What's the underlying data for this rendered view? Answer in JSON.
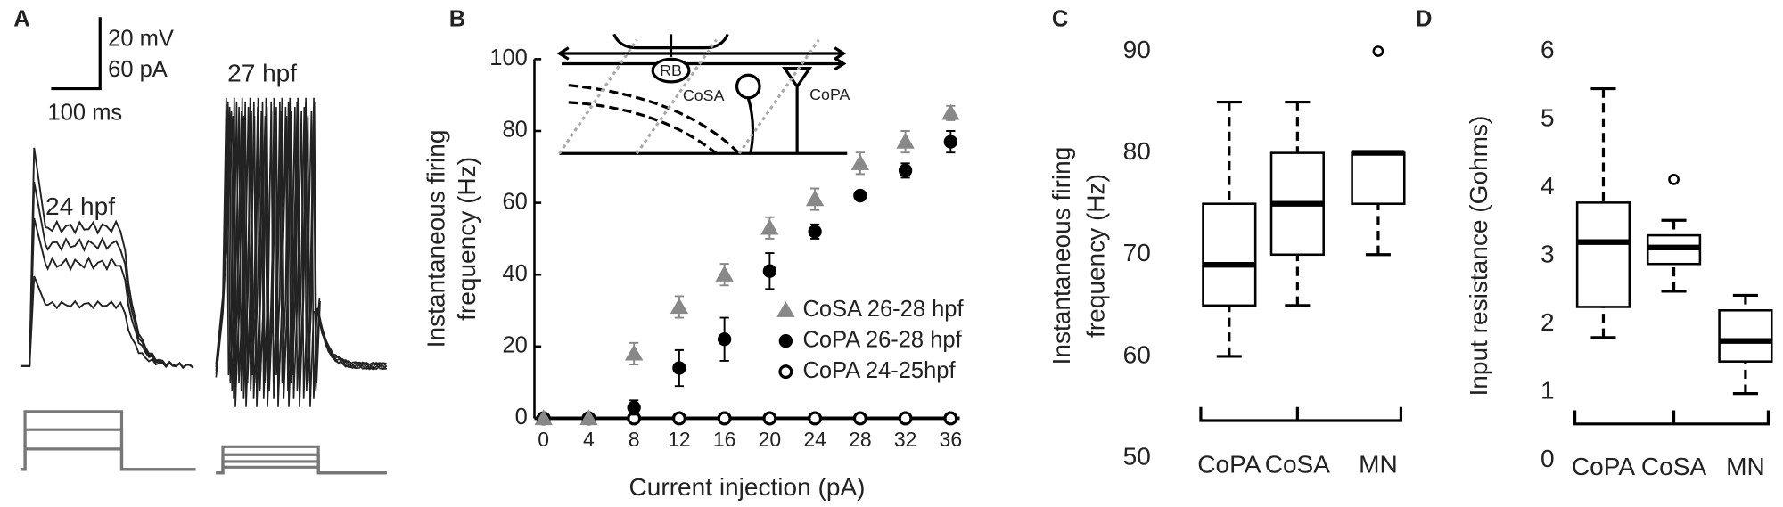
{
  "panel_a": {
    "label": "A",
    "scale_bar": [
      "20 mV",
      "60 pA",
      "100 ms"
    ],
    "traces": [
      "24 hpf",
      "27 hpf"
    ]
  },
  "chart_data": [
    {
      "type": "scatter",
      "panel": "B",
      "x_label": "Current injection (pA)",
      "y_label": [
        "Instantaneous firing",
        "frequency (Hz)"
      ],
      "x": [
        0,
        4,
        8,
        12,
        16,
        20,
        24,
        28,
        32,
        36
      ],
      "xlim": [
        0,
        36
      ],
      "xticks": [
        0,
        4,
        8,
        12,
        16,
        20,
        24,
        28,
        32,
        36
      ],
      "ylim": [
        0,
        100
      ],
      "yticks": [
        0,
        20,
        40,
        60,
        80,
        100
      ],
      "annotations": [
        "RB",
        "CoSA",
        "CoPA"
      ],
      "series": [
        {
          "name": "CoSA 26-28 hpf",
          "color": "#888888",
          "marker": "triangle",
          "values": [
            0,
            0,
            18,
            31,
            40,
            53,
            61,
            71,
            77,
            85
          ],
          "errors": [
            0,
            0,
            3,
            3,
            3,
            3,
            3,
            3,
            3,
            2
          ]
        },
        {
          "name": "CoPA 26-28 hpf",
          "color": "#000000",
          "marker": "circle",
          "values": [
            0,
            0,
            3,
            14,
            22,
            41,
            52,
            62,
            69,
            77
          ],
          "errors": [
            0,
            0,
            2,
            5,
            6,
            5,
            2,
            1,
            2,
            3
          ]
        },
        {
          "name": "CoPA 24-25hpf",
          "color": "#000000",
          "marker": "open-circle",
          "values": [
            0,
            0,
            0,
            0,
            0,
            0,
            0,
            0,
            0,
            0
          ],
          "errors": [
            0,
            0,
            0,
            0,
            0,
            0,
            0,
            0,
            0,
            0
          ]
        }
      ]
    },
    {
      "type": "box",
      "panel": "C",
      "y_label": [
        "Instantaneous firing",
        "frequency (Hz)"
      ],
      "categories": [
        "CoPA",
        "CoSA",
        "MN"
      ],
      "ylim": [
        50,
        90
      ],
      "yticks": [
        50,
        60,
        70,
        80,
        90
      ],
      "min": [
        60,
        65,
        70
      ],
      "q1": [
        65,
        70,
        75
      ],
      "median": [
        69,
        75,
        80
      ],
      "q3": [
        75,
        80,
        80
      ],
      "max": [
        85,
        85,
        80
      ],
      "outliers": [
        [],
        [],
        [
          90
        ]
      ]
    },
    {
      "type": "box",
      "panel": "D",
      "y_label": [
        "Input resistance (Gohms)"
      ],
      "categories": [
        "CoPA",
        "CoSA",
        "MN"
      ],
      "ylim": [
        0,
        6
      ],
      "yticks": [
        0,
        1,
        2,
        3,
        4,
        5,
        6
      ],
      "min": [
        1.8,
        2.48,
        0.98
      ],
      "q1": [
        2.25,
        2.88,
        1.45
      ],
      "median": [
        3.2,
        3.12,
        1.75
      ],
      "q3": [
        3.78,
        3.3,
        2.2
      ],
      "max": [
        5.45,
        3.52,
        2.42
      ],
      "outliers": [
        [],
        [
          4.12
        ],
        []
      ]
    }
  ]
}
